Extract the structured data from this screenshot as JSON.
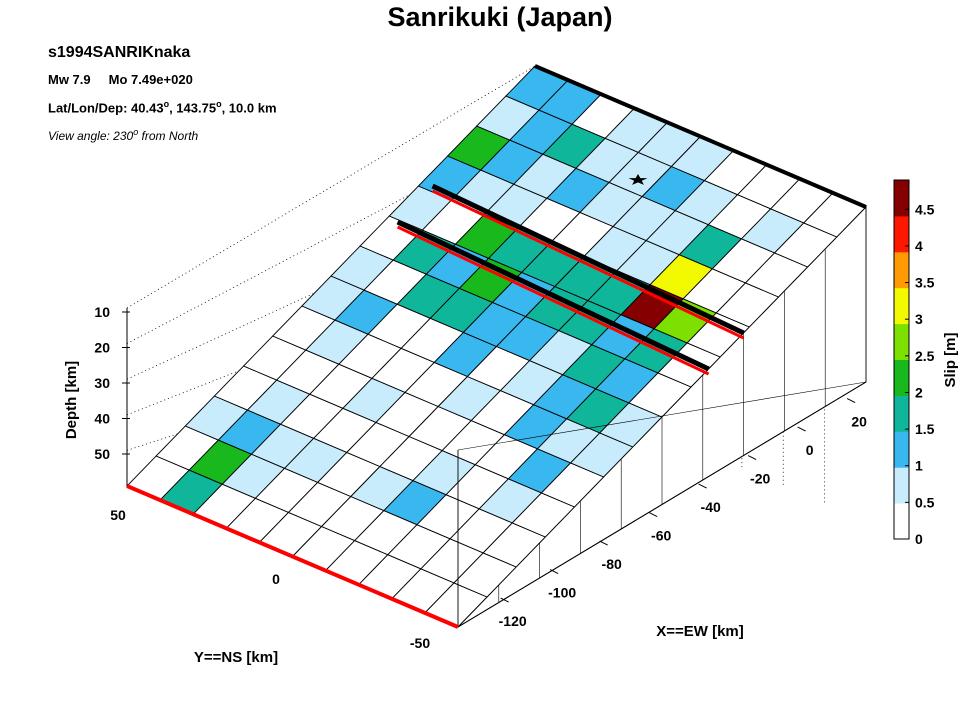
{
  "chart_data": {
    "type": "heatmap",
    "title": "Sanrikuki (Japan)",
    "event_id": "s1994SANRIKnaka",
    "magnitude": "Mw 7.9",
    "moment": "Mo 7.49e+020",
    "location_label": "Lat/Lon/Dep: 40.43",
    "location_lon": ", 143.75",
    "location_dep": ", 10.0 km",
    "degree_mark": "o",
    "view_label": "View angle: 230",
    "view_suffix": " from North",
    "xlabel": "X==EW [km]",
    "ylabel": "Y==NS [km]",
    "zlabel": "Depth [km]",
    "colorbar_label": "Slip [m]",
    "x_ticks": [
      "20",
      "0",
      "-20",
      "-40",
      "-60",
      "-80",
      "-100",
      "-120"
    ],
    "y_ticks": [
      "50",
      "0",
      "-50"
    ],
    "z_ticks": [
      "10",
      "20",
      "30",
      "40",
      "50"
    ],
    "colorbar_ticks": [
      "0",
      "0.5",
      "1",
      "1.5",
      "2",
      "2.5",
      "3",
      "3.5",
      "4",
      "4.5"
    ],
    "colorbar_range": [
      0,
      4.9
    ],
    "colormap": [
      "#ffffff",
      "#c9ecfc",
      "#39b7ef",
      "#10b69a",
      "#19b91e",
      "#7ee000",
      "#f3fa00",
      "#ff9a00",
      "#ff1800",
      "#850000"
    ],
    "grid": "dotted",
    "rows": 14,
    "cols": 10,
    "slip": [
      [
        0.0,
        1.6,
        0.0,
        0.0,
        0.2,
        0.0,
        0.0,
        0.0,
        0.0,
        0.0
      ],
      [
        0.0,
        2.2,
        0.5,
        0.0,
        0.0,
        0.0,
        0.0,
        0.0,
        0.0,
        0.0
      ],
      [
        0.5,
        1.2,
        0.5,
        0.6,
        0.0,
        0.5,
        1.2,
        0.0,
        0.0,
        0.0
      ],
      [
        0.3,
        0.6,
        0.0,
        0.3,
        0.3,
        0.0,
        0.6,
        0.0,
        0.6,
        0.0
      ],
      [
        0.0,
        0.0,
        0.0,
        0.7,
        0.0,
        0.3,
        0.0,
        0.3,
        1.2,
        0.3
      ],
      [
        0.3,
        0.5,
        0.0,
        0.3,
        0.0,
        0.6,
        0.2,
        1.2,
        0.6,
        0.6
      ],
      [
        0.6,
        1.1,
        0.0,
        0.0,
        1.2,
        0.0,
        0.6,
        1.3,
        1.5,
        0.6
      ],
      [
        0.7,
        0.0,
        1.5,
        1.6,
        1.2,
        1.4,
        0.5,
        1.6,
        1.3,
        0.0
      ],
      [
        0.0,
        1.6,
        1.4,
        2.2,
        1.2,
        1.6,
        1.8,
        1.2,
        1.5,
        0.0
      ],
      [
        0.7,
        0.0,
        2.3,
        1.8,
        1.5,
        1.6,
        1.6,
        4.8,
        2.8,
        0.0
      ],
      [
        1.3,
        0.7,
        0.7,
        0.3,
        0.0,
        0.6,
        0.5,
        3.4,
        0.0,
        0.0
      ],
      [
        2.0,
        1.1,
        0.7,
        1.2,
        0.7,
        0.6,
        0.7,
        1.8,
        0.0,
        0.0
      ],
      [
        0.6,
        1.3,
        1.5,
        0.7,
        0.5,
        1.2,
        0.6,
        0.0,
        0.7,
        0.0
      ],
      [
        1.4,
        1.4,
        0.0,
        0.7,
        0.7,
        0.6,
        0.4,
        0.0,
        0.0,
        0.0
      ]
    ]
  }
}
